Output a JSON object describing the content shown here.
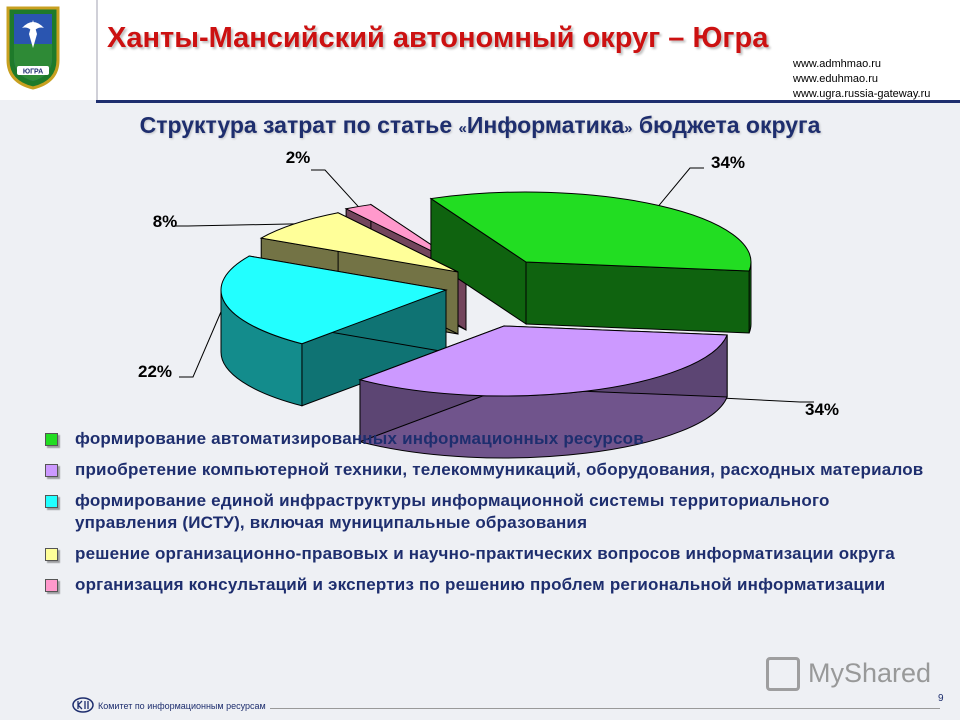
{
  "header": {
    "title": "Ханты-Мансийский автономный округ – Югра",
    "urls": [
      "www.admhmao.ru",
      "www.eduhmao.ru",
      "www.ugra.russia-gateway.ru"
    ],
    "emblem_text": "ЮГРА"
  },
  "subtitle": {
    "part1": "Структура затрат по статье ",
    "open_quote": "«",
    "part2": "Информатика",
    "close_quote": "»",
    "part3": " бюджета округа"
  },
  "chart_data": {
    "type": "pie",
    "title": "Структура затрат по статье «Информатика» бюджета округа",
    "style": "3d-exploded",
    "slices": [
      {
        "label": "формирование автоматизированных информационных ресурсов",
        "value": 34,
        "display": "34%",
        "color": "#22dd22"
      },
      {
        "label": "приобретение компьютерной техники, телекоммуникаций, оборудования, расходных материалов",
        "value": 34,
        "display": "34%",
        "color": "#cc99ff"
      },
      {
        "label": "формирование единой инфраструктуры информационной системы территориального управления (ИСТУ), включая муниципальные образования",
        "value": 22,
        "display": "22%",
        "color": "#22ffff"
      },
      {
        "label": "решение организационно-правовых и научно-практических вопросов информатизации округа",
        "value": 8,
        "display": "8%",
        "color": "#ffff99"
      },
      {
        "label": "организация консультаций и экспертиз по решению проблем региональной информатизации",
        "value": 2,
        "display": "2%",
        "color": "#ff99cc"
      }
    ],
    "legend_position": "bottom"
  },
  "footer": {
    "text": "Комитет по информационным ресурсам",
    "page_number": "9"
  },
  "watermark": {
    "text": "MyShared"
  }
}
